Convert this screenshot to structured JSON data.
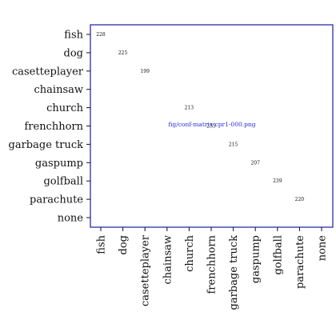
{
  "chart_data": {
    "type": "heatmap",
    "row_labels": [
      "fish",
      "dog",
      "casetteplayer",
      "chainsaw",
      "church",
      "frenchhorn",
      "garbage truck",
      "gaspump",
      "golfball",
      "parachute",
      "none"
    ],
    "col_labels": [
      "fish",
      "dog",
      "casetteplayer",
      "chainsaw",
      "church",
      "frenchhorn",
      "garbage truck",
      "gaspump",
      "golfball",
      "parachute",
      "none"
    ],
    "cells": [
      {
        "row": 0,
        "col": 0,
        "value": 228
      },
      {
        "row": 1,
        "col": 1,
        "value": 225
      },
      {
        "row": 2,
        "col": 2,
        "value": 199
      },
      {
        "row": 4,
        "col": 4,
        "value": 213
      },
      {
        "row": 5,
        "col": 5,
        "value": 235
      },
      {
        "row": 6,
        "col": 6,
        "value": 215
      },
      {
        "row": 7,
        "col": 7,
        "value": 207
      },
      {
        "row": 8,
        "col": 8,
        "value": 239
      },
      {
        "row": 9,
        "col": 9,
        "value": 220
      }
    ],
    "overlay_text": "fig/conf-matrix-cpr1-000.png",
    "colors": {
      "frame": "#1a1aa8",
      "overlay": "#2a2ae0",
      "text": "#111111"
    }
  }
}
